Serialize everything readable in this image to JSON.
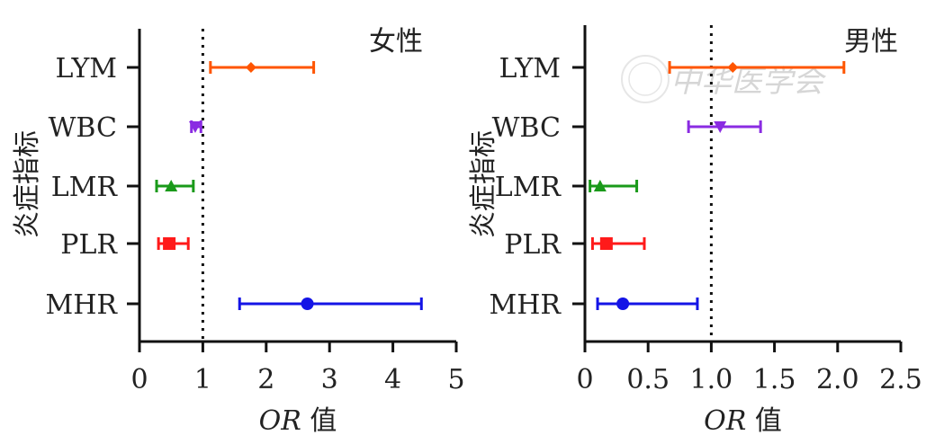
{
  "chart_data": [
    {
      "type": "forest",
      "title": "女性",
      "ylabel": "炎症指标",
      "xlabel_italic": "OR",
      "xlabel_rest": " 值",
      "xlim": [
        0,
        5
      ],
      "xticks": [
        "0",
        "1",
        "2",
        "3",
        "4",
        "5"
      ],
      "reference_line": 1,
      "categories": [
        "LYM",
        "WBC",
        "LMR",
        "PLR",
        "MHR"
      ],
      "points": [
        {
          "label": "LYM",
          "or": 1.76,
          "low": 1.12,
          "high": 2.75,
          "color": "#ff5500",
          "marker": "diamond"
        },
        {
          "label": "WBC",
          "or": 0.88,
          "low": 0.82,
          "high": 0.97,
          "color": "#8a2be2",
          "marker": "triangle-down"
        },
        {
          "label": "LMR",
          "or": 0.5,
          "low": 0.27,
          "high": 0.85,
          "color": "#1a9a1a",
          "marker": "triangle-up"
        },
        {
          "label": "PLR",
          "or": 0.47,
          "low": 0.3,
          "high": 0.77,
          "color": "#ff1a1a",
          "marker": "square"
        },
        {
          "label": "MHR",
          "or": 2.65,
          "low": 1.58,
          "high": 4.45,
          "color": "#1414e6",
          "marker": "circle"
        }
      ]
    },
    {
      "type": "forest",
      "title": "男性",
      "ylabel": "炎症指标",
      "xlabel_italic": "OR",
      "xlabel_rest": " 值",
      "xlim": [
        0,
        2.5
      ],
      "xticks": [
        "0",
        "0.5",
        "1.0",
        "1.5",
        "2.0",
        "2.5"
      ],
      "reference_line": 1,
      "categories": [
        "LYM",
        "WBC",
        "LMR",
        "PLR",
        "MHR"
      ],
      "points": [
        {
          "label": "LYM",
          "or": 1.17,
          "low": 0.67,
          "high": 2.05,
          "color": "#ff5500",
          "marker": "diamond"
        },
        {
          "label": "WBC",
          "or": 1.07,
          "low": 0.82,
          "high": 1.39,
          "color": "#8a2be2",
          "marker": "triangle-down"
        },
        {
          "label": "LMR",
          "or": 0.12,
          "low": 0.04,
          "high": 0.41,
          "color": "#1a9a1a",
          "marker": "triangle-up"
        },
        {
          "label": "PLR",
          "or": 0.17,
          "low": 0.06,
          "high": 0.47,
          "color": "#ff1a1a",
          "marker": "square"
        },
        {
          "label": "MHR",
          "or": 0.3,
          "low": 0.1,
          "high": 0.89,
          "color": "#1414e6",
          "marker": "circle"
        }
      ]
    }
  ],
  "watermark": "中华医学会"
}
